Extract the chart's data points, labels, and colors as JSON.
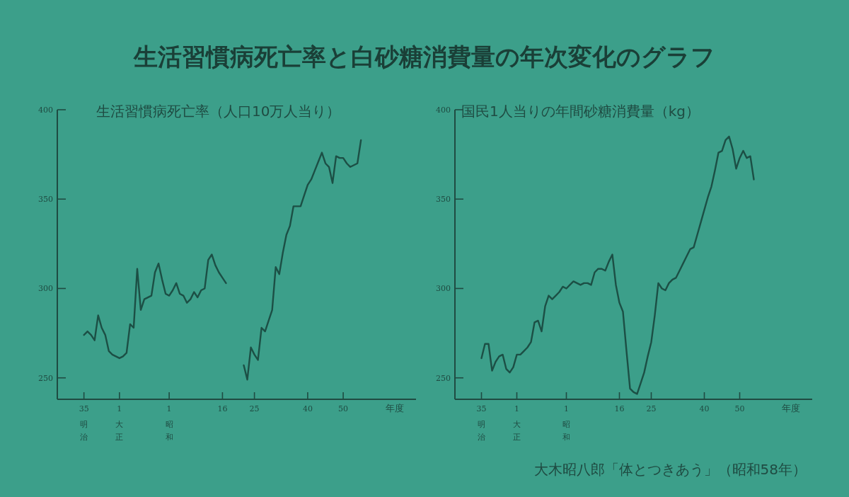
{
  "chart_data": [
    {
      "type": "line",
      "title": "生活習慣病死亡率と白砂糖消費量の年次変化のグラフ",
      "subtitle": "生活習慣病死亡率（人口10万人当り）",
      "xlabel": "年度",
      "color": "#1c4f45",
      "line_style": "solid",
      "ylim": [
        238,
        400
      ],
      "yticks": [
        250,
        300,
        350,
        400
      ],
      "categories": [
        null,
        null,
        null,
        null,
        null,
        null,
        null,
        "35\n明治",
        null,
        null,
        null,
        null,
        null,
        null,
        null,
        null,
        null,
        "1\n大正",
        null,
        null,
        null,
        null,
        null,
        null,
        null,
        null,
        null,
        null,
        null,
        null,
        null,
        "1\n昭和",
        null,
        null,
        null,
        null,
        null,
        null,
        null,
        null,
        null,
        null,
        null,
        null,
        null,
        null,
        "16",
        null,
        null,
        null,
        null,
        null,
        null,
        null,
        null,
        "25",
        null,
        null,
        null,
        null,
        null,
        null,
        null,
        null,
        null,
        null,
        null,
        null,
        null,
        null,
        "40",
        null,
        null,
        null,
        null,
        null,
        null,
        null,
        null,
        null,
        "50",
        null,
        null,
        null,
        null,
        null,
        null,
        null,
        null,
        null,
        null,
        null,
        null,
        null,
        null,
        null,
        null,
        null,
        null,
        null,
        null
      ],
      "values": [
        null,
        null,
        null,
        null,
        null,
        null,
        null,
        274,
        276,
        274,
        271,
        285,
        278,
        274,
        265,
        263,
        262,
        261,
        262,
        264,
        280,
        278,
        311,
        288,
        294,
        295,
        296,
        309,
        314,
        305,
        297,
        296,
        299,
        303,
        297,
        296,
        292,
        294,
        298,
        295,
        299,
        300,
        316,
        319,
        313,
        309,
        306,
        303,
        null,
        null,
        null,
        null,
        257,
        249,
        267,
        263,
        260,
        278,
        276,
        282,
        288,
        312,
        308,
        320,
        330,
        335,
        346,
        346,
        346,
        352,
        358,
        361,
        366,
        371,
        376,
        370,
        368,
        359,
        374,
        373,
        373,
        370,
        368,
        369,
        370,
        383,
        null,
        null,
        null,
        null,
        null,
        null,
        null,
        null,
        null,
        null,
        null,
        null,
        null,
        null,
        null
      ]
    },
    {
      "type": "line",
      "subtitle": "国民1人当りの年間砂糖消費量（kg）",
      "xlabel": "年度",
      "color": "#1c4f45",
      "line_style": "solid",
      "ylim": [
        238,
        400
      ],
      "yticks": [
        250,
        300,
        350,
        400
      ],
      "categories": [
        null,
        null,
        null,
        null,
        null,
        null,
        null,
        "35\n明治",
        null,
        null,
        null,
        null,
        null,
        null,
        null,
        null,
        null,
        "1\n大正",
        null,
        null,
        null,
        null,
        null,
        null,
        null,
        null,
        null,
        null,
        null,
        null,
        null,
        "1\n昭和",
        null,
        null,
        null,
        null,
        null,
        null,
        null,
        null,
        null,
        null,
        null,
        null,
        null,
        null,
        "16",
        null,
        null,
        null,
        null,
        null,
        null,
        null,
        null,
        "25",
        null,
        null,
        null,
        null,
        null,
        null,
        null,
        null,
        null,
        null,
        null,
        null,
        null,
        null,
        "40",
        null,
        null,
        null,
        null,
        null,
        null,
        null,
        null,
        null,
        "50",
        null,
        null,
        null,
        null,
        null,
        null,
        null,
        null,
        null,
        null,
        null,
        null,
        null,
        null,
        null,
        null,
        null,
        null,
        null,
        null
      ],
      "values": [
        null,
        null,
        null,
        null,
        null,
        null,
        null,
        261,
        269,
        269,
        254,
        259,
        262,
        263,
        255,
        253,
        256,
        263,
        263,
        265,
        267,
        270,
        281,
        282,
        276,
        290,
        296,
        294,
        296,
        298,
        301,
        300,
        302,
        304,
        303,
        302,
        303,
        303,
        302,
        309,
        311,
        311,
        310,
        315,
        319,
        302,
        292,
        287,
        265,
        244,
        242,
        241,
        247,
        253,
        262,
        270,
        285,
        303,
        300,
        299,
        303,
        305,
        306,
        310,
        314,
        318,
        322,
        323,
        330,
        337,
        344,
        351,
        357,
        366,
        376,
        377,
        383,
        385,
        378,
        367,
        373,
        377,
        373,
        374,
        361,
        null,
        null,
        null,
        null,
        null,
        null,
        null,
        null,
        null,
        null,
        null,
        null,
        null,
        null,
        null,
        null
      ],
      "annotations": [
        "大木昭八郎「体とつきあう」（昭和58年）"
      ]
    }
  ]
}
